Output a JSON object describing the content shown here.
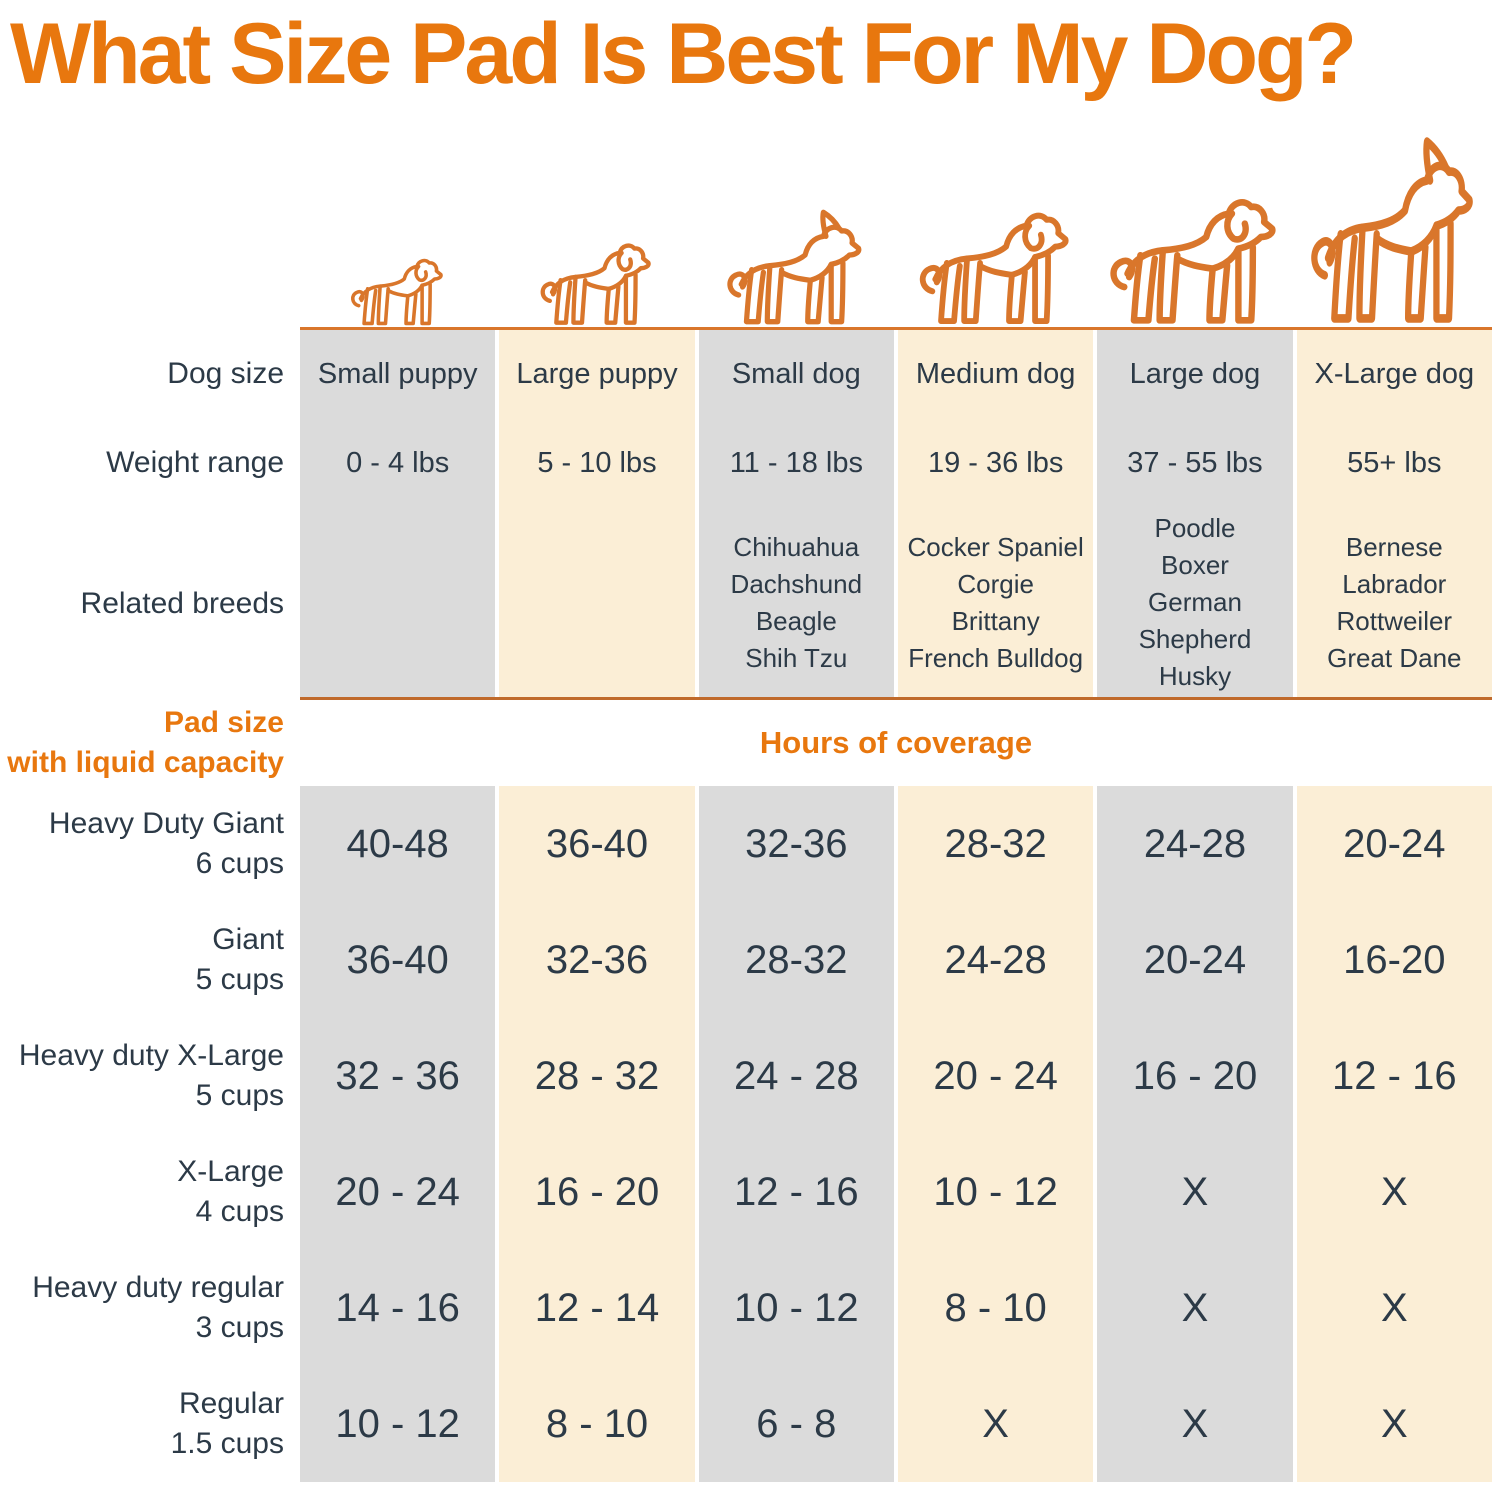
{
  "title": "What Size Pad Is Best For My Dog?",
  "labels": {
    "dog_size": "Dog size",
    "weight_range": "Weight range",
    "related_breeds": "Related breeds",
    "pad_size_line1": "Pad size",
    "pad_size_line2": "with liquid capacity",
    "hours_of_coverage": "Hours of coverage"
  },
  "colors": {
    "accent_orange": "#e8770e",
    "dog_line_orange": "#d9762b",
    "divider_orange": "#c06a2b",
    "column_gray": "#dbdbdb",
    "column_cream": "#fbeed6",
    "text_dark": "#2c3a47"
  },
  "dogs": [
    {
      "icon": "small-puppy-dog-icon",
      "ears": "floppy"
    },
    {
      "icon": "large-puppy-dog-icon",
      "ears": "floppy"
    },
    {
      "icon": "small-dog-chihuahua-icon",
      "ears": "pointy"
    },
    {
      "icon": "medium-dog-icon",
      "ears": "floppy"
    },
    {
      "icon": "large-dog-icon",
      "ears": "floppy"
    },
    {
      "icon": "x-large-dog-great-dane-icon",
      "ears": "pointy"
    }
  ],
  "chart_data": {
    "type": "table",
    "title": "What Size Pad Is Best For My Dog?",
    "section_header": "Hours of coverage",
    "columns": [
      "Small puppy",
      "Large puppy",
      "Small dog",
      "Medium dog",
      "Large dog",
      "X-Large dog"
    ],
    "weight_ranges": [
      "0 - 4 lbs",
      "5 - 10 lbs",
      "11 - 18 lbs",
      "19 - 36 lbs",
      "37 - 55 lbs",
      "55+ lbs"
    ],
    "related_breeds": [
      [],
      [],
      [
        "Chihuahua",
        "Dachshund",
        "Beagle",
        "Shih Tzu"
      ],
      [
        "Cocker Spaniel",
        "Corgie",
        "Brittany",
        "French Bulldog"
      ],
      [
        "Poodle",
        "Boxer",
        "German Shepherd",
        "Husky"
      ],
      [
        "Bernese",
        "Labrador",
        "Rottweiler",
        "Great Dane"
      ]
    ],
    "rows": [
      {
        "pad": "Heavy Duty Giant",
        "capacity": "6 cups",
        "hours": [
          "40-48",
          "36-40",
          "32-36",
          "28-32",
          "24-28",
          "20-24"
        ]
      },
      {
        "pad": "Giant",
        "capacity": "5 cups",
        "hours": [
          "36-40",
          "32-36",
          "28-32",
          "24-28",
          "20-24",
          "16-20"
        ]
      },
      {
        "pad": "Heavy duty X-Large",
        "capacity": "5 cups",
        "hours": [
          "32 - 36",
          "28 - 32",
          "24 - 28",
          "20 - 24",
          "16 - 20",
          "12 - 16"
        ]
      },
      {
        "pad": "X-Large",
        "capacity": "4 cups",
        "hours": [
          "20 - 24",
          "16 - 20",
          "12 - 16",
          "10 - 12",
          "X",
          "X"
        ]
      },
      {
        "pad": "Heavy duty regular",
        "capacity": "3 cups",
        "hours": [
          "14 - 16",
          "12 - 14",
          "10 - 12",
          "8 - 10",
          "X",
          "X"
        ]
      },
      {
        "pad": "Regular",
        "capacity": "1.5 cups",
        "hours": [
          "10 - 12",
          "8 - 10",
          "6 - 8",
          "X",
          "X",
          "X"
        ]
      }
    ]
  }
}
